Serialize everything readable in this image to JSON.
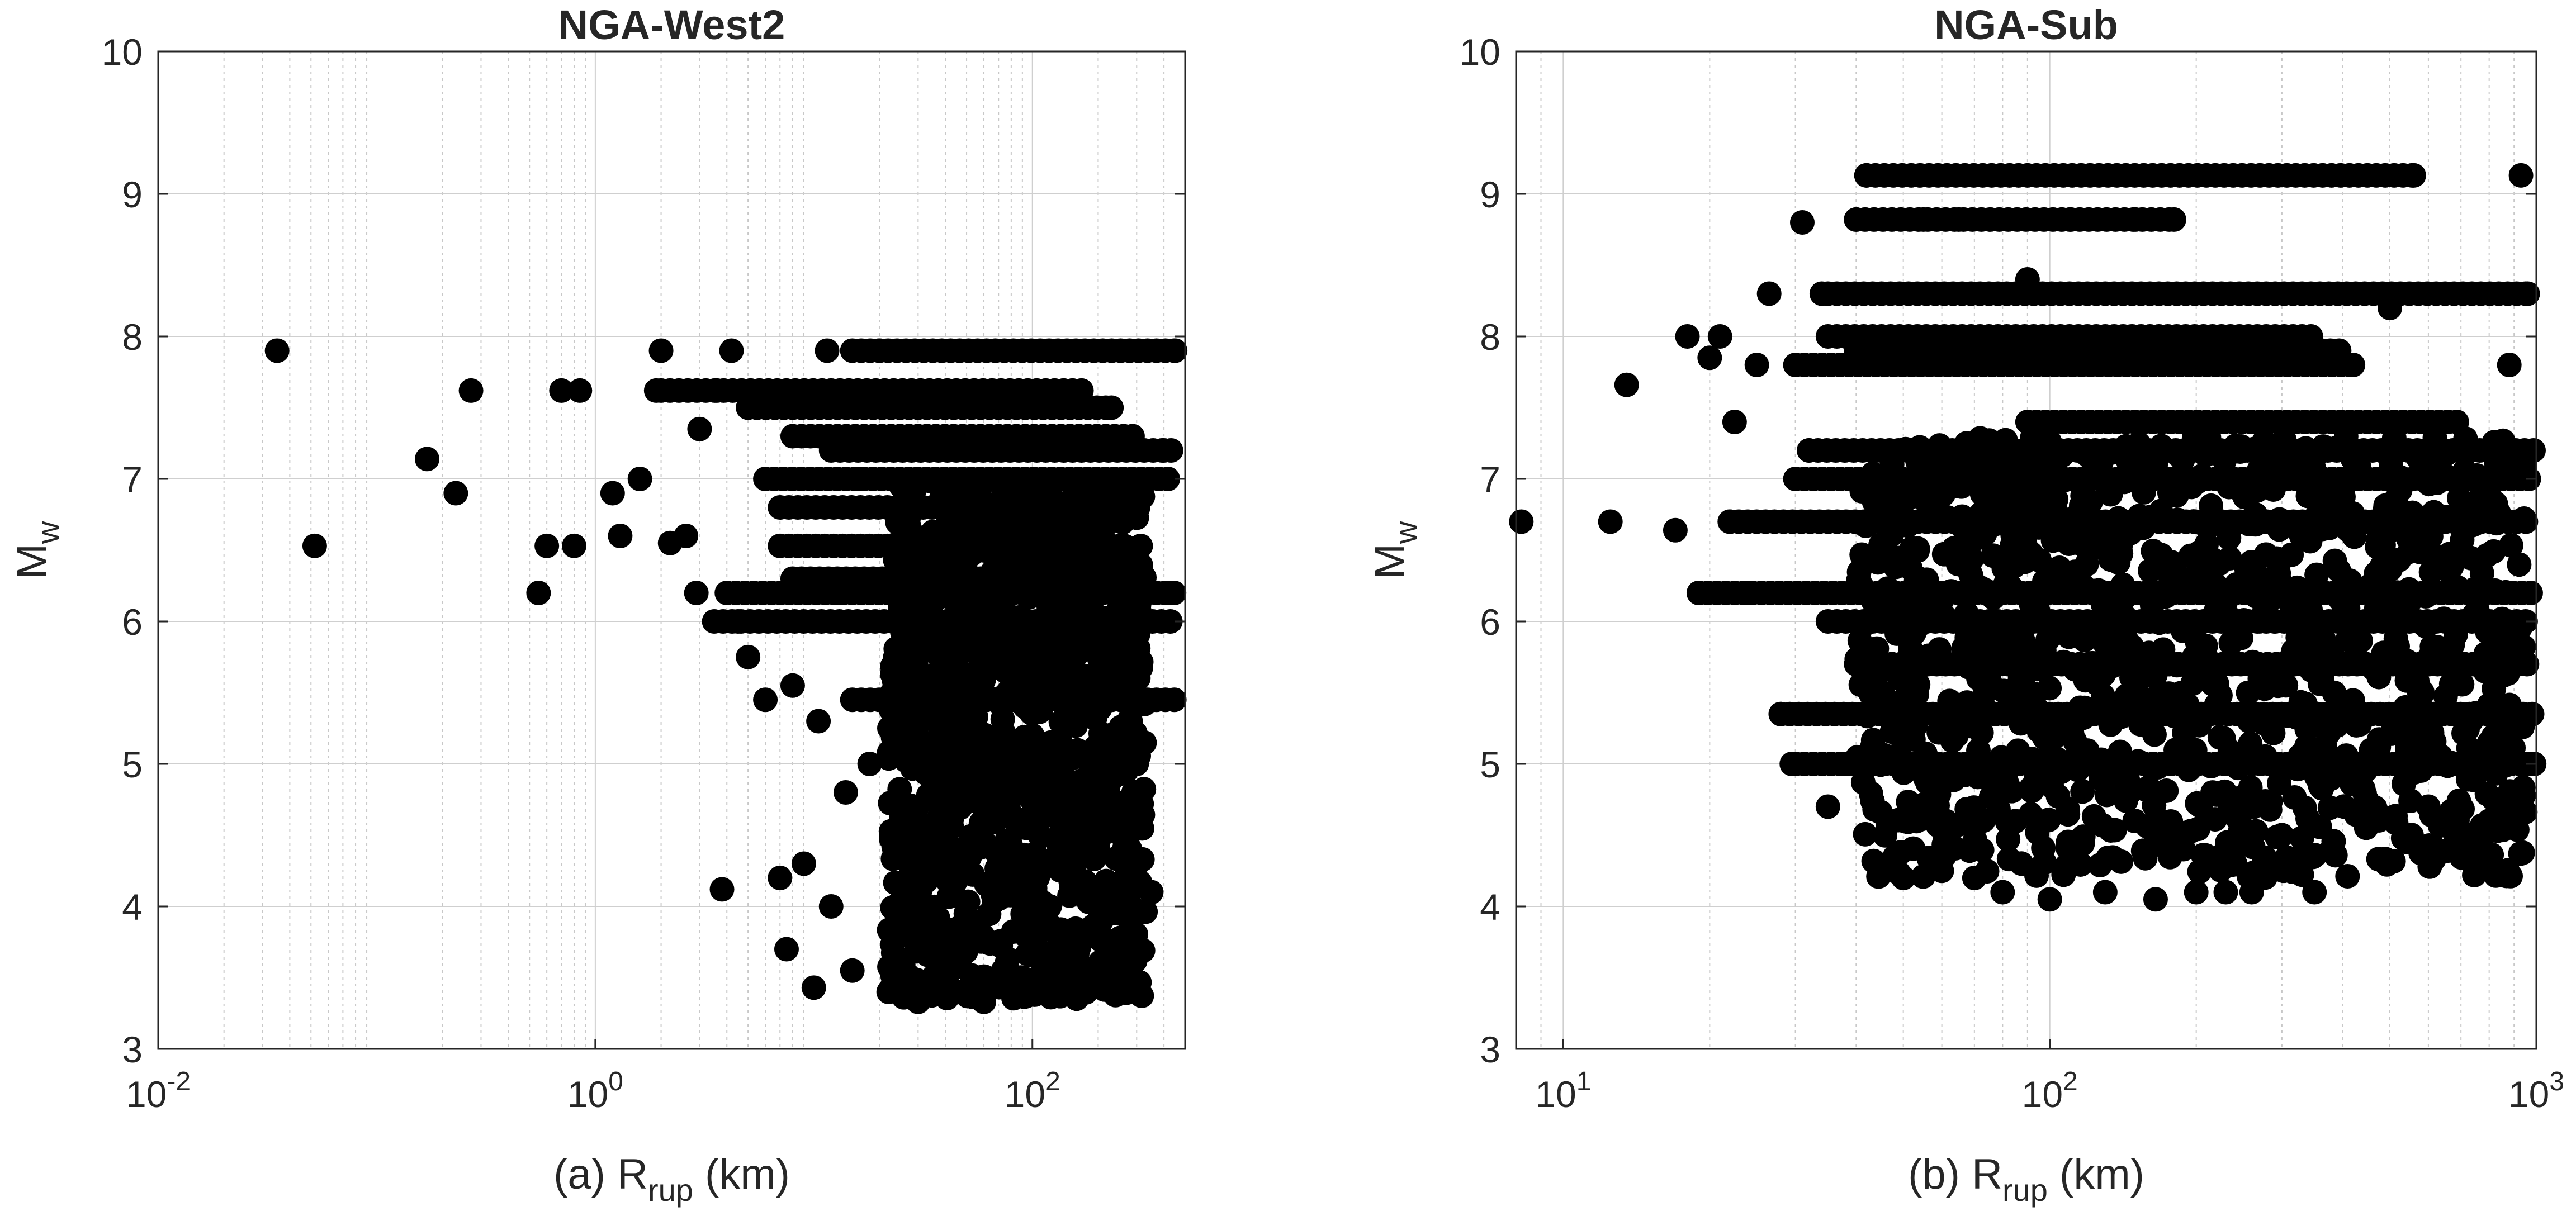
{
  "chart_data": [
    {
      "type": "scatter",
      "title": "NGA-West2",
      "xlabel": {
        "prefix": "(a) R",
        "sub": "rup",
        "suffix": " (km)"
      },
      "ylabel": {
        "main": "M",
        "sub": "w"
      },
      "xscale": "log",
      "xlim": [
        0.01,
        500
      ],
      "ylim": [
        3,
        10
      ],
      "xticks": [
        {
          "base": "10",
          "exp": "-2",
          "value": 0.01
        },
        {
          "base": "10",
          "exp": "0",
          "value": 1
        },
        {
          "base": "10",
          "exp": "2",
          "value": 100
        }
      ],
      "yticks": [
        "3",
        "4",
        "5",
        "6",
        "7",
        "8",
        "9",
        "10"
      ],
      "grid": true,
      "marker_color": "#000000",
      "points": [
        [
          0.035,
          7.9
        ],
        [
          0.052,
          6.53
        ],
        [
          0.17,
          7.14
        ],
        [
          0.23,
          6.9
        ],
        [
          0.27,
          7.62
        ],
        [
          0.55,
          6.2
        ],
        [
          0.6,
          6.53
        ],
        [
          0.7,
          7.62
        ],
        [
          0.8,
          6.53
        ],
        [
          0.85,
          7.62
        ],
        [
          1.2,
          6.9
        ],
        [
          1.3,
          6.6
        ],
        [
          1.6,
          7.0
        ],
        [
          1.9,
          7.62
        ],
        [
          2.0,
          7.9
        ],
        [
          2.2,
          6.55
        ],
        [
          2.6,
          6.6
        ],
        [
          2.9,
          6.2
        ],
        [
          3.0,
          7.35
        ],
        [
          3.6,
          7.62
        ],
        [
          3.8,
          4.12
        ],
        [
          4.2,
          7.9
        ],
        [
          4.5,
          6.0
        ],
        [
          5.0,
          5.75
        ],
        [
          6.0,
          5.45
        ],
        [
          7.0,
          4.2
        ],
        [
          7.5,
          3.7
        ],
        [
          8.0,
          5.55
        ],
        [
          9.0,
          4.3
        ],
        [
          10.0,
          3.43
        ],
        [
          10.5,
          5.3
        ],
        [
          11.5,
          7.9
        ],
        [
          12.0,
          4.0
        ],
        [
          13.0,
          6.2
        ],
        [
          14.0,
          4.8
        ],
        [
          15.0,
          3.55
        ],
        [
          16.0,
          7.0
        ],
        [
          18.0,
          5.0
        ],
        [
          20.0,
          7.9
        ],
        [
          22.0,
          3.4
        ],
        [
          25.0,
          5.5
        ],
        [
          28.0,
          4.2
        ],
        [
          30.0,
          3.33
        ],
        [
          35.0,
          6.6
        ],
        [
          40.0,
          4.6
        ],
        [
          45.0,
          3.4
        ],
        [
          50.0,
          5.8
        ],
        [
          60.0,
          3.33
        ],
        [
          70.0,
          4.9
        ],
        [
          80.0,
          6.3
        ],
        [
          90.0,
          3.5
        ],
        [
          100.0,
          5.2
        ],
        [
          120.0,
          4.0
        ],
        [
          140.0,
          6.8
        ],
        [
          160.0,
          3.38
        ],
        [
          180.0,
          5.6
        ],
        [
          200.0,
          4.4
        ],
        [
          230.0,
          7.5
        ],
        [
          260.0,
          3.5
        ],
        [
          300.0,
          5.0
        ],
        [
          350.0,
          4.1
        ],
        [
          400.0,
          7.2
        ],
        [
          420.0,
          6.2
        ],
        [
          450.0,
          7.9
        ]
      ],
      "horizontal_bands": [
        {
          "y": 7.9,
          "x_from": 15,
          "x_to": 450
        },
        {
          "y": 7.62,
          "x_from": 2.0,
          "x_to": 180
        },
        {
          "y": 7.5,
          "x_from": 5.0,
          "x_to": 220
        },
        {
          "y": 7.3,
          "x_from": 8.0,
          "x_to": 300
        },
        {
          "y": 7.2,
          "x_from": 12,
          "x_to": 450
        },
        {
          "y": 7.0,
          "x_from": 6.0,
          "x_to": 450
        },
        {
          "y": 6.8,
          "x_from": 7.0,
          "x_to": 330
        },
        {
          "y": 6.53,
          "x_from": 7.0,
          "x_to": 260
        },
        {
          "y": 6.3,
          "x_from": 8.0,
          "x_to": 250
        },
        {
          "y": 6.2,
          "x_from": 4.0,
          "x_to": 450
        },
        {
          "y": 6.0,
          "x_from": 3.5,
          "x_to": 450
        },
        {
          "y": 5.45,
          "x_from": 15,
          "x_to": 450
        }
      ],
      "dense_cluster": {
        "x_from": 22,
        "x_to": 330,
        "y_from": 3.35,
        "y_to": 7.0
      }
    },
    {
      "type": "scatter",
      "title": "NGA-Sub",
      "xlabel": {
        "prefix": "(b) R",
        "sub": "rup",
        "suffix": " (km)"
      },
      "ylabel": {
        "main": "M",
        "sub": "w"
      },
      "xscale": "log",
      "xlim": [
        8,
        1000
      ],
      "ylim": [
        3,
        10
      ],
      "xticks": [
        {
          "base": "10",
          "exp": "1",
          "value": 10
        },
        {
          "base": "10",
          "exp": "2",
          "value": 100
        },
        {
          "base": "10",
          "exp": "3",
          "value": 1000
        }
      ],
      "yticks": [
        "3",
        "4",
        "5",
        "6",
        "7",
        "8",
        "9",
        "10"
      ],
      "grid": true,
      "marker_color": "#000000",
      "points": [
        [
          8.2,
          6.7
        ],
        [
          12.5,
          6.7
        ],
        [
          13.5,
          7.66
        ],
        [
          17.0,
          6.64
        ],
        [
          18.0,
          8.0
        ],
        [
          19.0,
          6.2
        ],
        [
          20.0,
          7.85
        ],
        [
          21.0,
          8.0
        ],
        [
          22.0,
          6.7
        ],
        [
          22.5,
          7.4
        ],
        [
          24.0,
          6.2
        ],
        [
          25.0,
          7.8
        ],
        [
          26.5,
          8.3
        ],
        [
          28.0,
          5.35
        ],
        [
          29.5,
          5.0
        ],
        [
          31.0,
          8.8
        ],
        [
          32.0,
          7.2
        ],
        [
          34.0,
          8.3
        ],
        [
          35.0,
          4.7
        ],
        [
          38.0,
          5.0
        ],
        [
          40.0,
          8.82
        ],
        [
          42.0,
          9.13
        ],
        [
          45.0,
          5.65
        ],
        [
          50.0,
          4.2
        ],
        [
          55.0,
          8.82
        ],
        [
          60.0,
          4.25
        ],
        [
          65.0,
          8.82
        ],
        [
          70.0,
          4.2
        ],
        [
          80.0,
          4.1
        ],
        [
          90.0,
          8.4
        ],
        [
          100.0,
          4.05
        ],
        [
          110.0,
          8.82
        ],
        [
          130.0,
          4.1
        ],
        [
          150.0,
          8.82
        ],
        [
          165.0,
          4.05
        ],
        [
          180.0,
          8.82
        ],
        [
          200.0,
          4.1
        ],
        [
          230.0,
          4.1
        ],
        [
          260.0,
          4.1
        ],
        [
          300.0,
          4.5
        ],
        [
          350.0,
          4.1
        ],
        [
          380.0,
          4.4
        ],
        [
          420.0,
          7.8
        ],
        [
          450.0,
          4.7
        ],
        [
          500.0,
          8.2
        ],
        [
          560.0,
          9.13
        ],
        [
          600.0,
          4.7
        ],
        [
          700.0,
          4.7
        ],
        [
          800.0,
          4.6
        ],
        [
          880.0,
          7.8
        ],
        [
          930.0,
          9.13
        ],
        [
          960.0,
          8.3
        ],
        [
          990.0,
          5.0
        ]
      ],
      "horizontal_bands": [
        {
          "y": 9.13,
          "x_from": 42,
          "x_to": 560
        },
        {
          "y": 8.82,
          "x_from": 40,
          "x_to": 180
        },
        {
          "y": 8.3,
          "x_from": 35,
          "x_to": 990
        },
        {
          "y": 8.0,
          "x_from": 35,
          "x_to": 350
        },
        {
          "y": 7.9,
          "x_from": 40,
          "x_to": 400
        },
        {
          "y": 7.8,
          "x_from": 30,
          "x_to": 420
        },
        {
          "y": 7.4,
          "x_from": 90,
          "x_to": 700
        },
        {
          "y": 7.2,
          "x_from": 32,
          "x_to": 990
        },
        {
          "y": 7.0,
          "x_from": 30,
          "x_to": 990
        },
        {
          "y": 6.7,
          "x_from": 22,
          "x_to": 990
        },
        {
          "y": 6.2,
          "x_from": 19,
          "x_to": 990
        },
        {
          "y": 6.0,
          "x_from": 35,
          "x_to": 990
        },
        {
          "y": 5.7,
          "x_from": 40,
          "x_to": 990
        },
        {
          "y": 5.35,
          "x_from": 28,
          "x_to": 990
        },
        {
          "y": 5.0,
          "x_from": 30,
          "x_to": 990
        }
      ],
      "dense_cluster": {
        "x_from": 40,
        "x_to": 950,
        "y_from": 4.2,
        "y_to": 7.3
      }
    }
  ]
}
